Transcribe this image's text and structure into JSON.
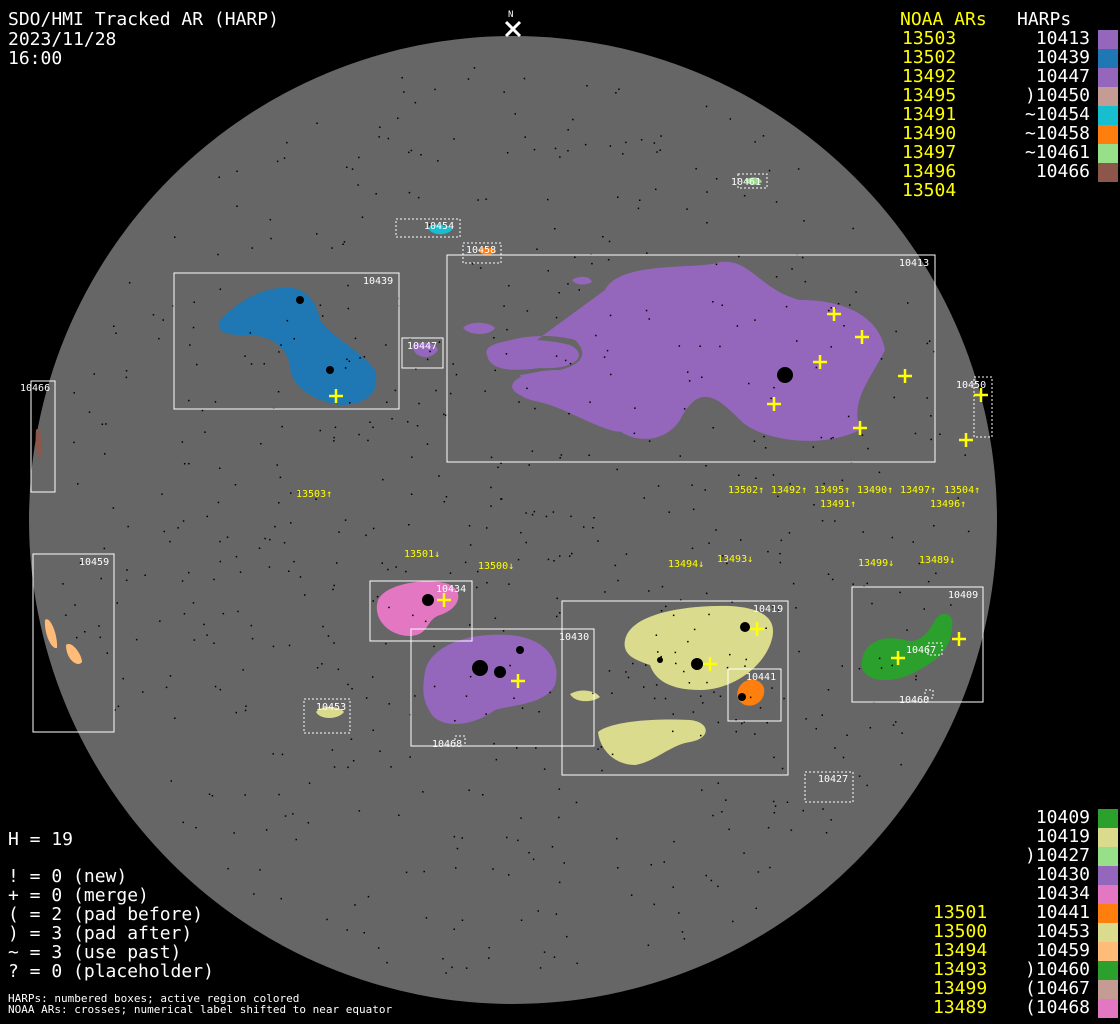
{
  "header": {
    "title": "SDO/HMI Tracked AR (HARP)",
    "date": "2023/11/28",
    "time": "16:00"
  },
  "north_label": "N",
  "legend_top": {
    "noaa_header": "NOAA ARs",
    "harp_header": "HARPs",
    "noaa": [
      "13503",
      "13502",
      "13492",
      "13495",
      "13491",
      "13490",
      "13497",
      "13496",
      "13504"
    ],
    "harps": [
      {
        "label": "10413",
        "color": "#9467bd"
      },
      {
        "label": "10439",
        "color": "#1f77b4"
      },
      {
        "label": "10447",
        "color": "#9467bd"
      },
      {
        "label": ")10450",
        "color": "#c49c94"
      },
      {
        "label": "~10454",
        "color": "#17becf"
      },
      {
        "label": "~10458",
        "color": "#ff7f0e"
      },
      {
        "label": "~10461",
        "color": "#98df8a"
      },
      {
        "label": "10466",
        "color": "#8c564b"
      }
    ]
  },
  "legend_bottom": {
    "noaa": [
      "",
      "",
      "",
      "",
      "",
      "13501",
      "13500",
      "13494",
      "13493",
      "13499",
      "13489"
    ],
    "harps": [
      {
        "label": "10409",
        "color": "#2ca02c"
      },
      {
        "label": "10419",
        "color": "#dbdb8d"
      },
      {
        "label": ")10427",
        "color": "#98df8a"
      },
      {
        "label": "10430",
        "color": "#9467bd"
      },
      {
        "label": "10434",
        "color": "#e377c2"
      },
      {
        "label": "10441",
        "color": "#ff7f0e"
      },
      {
        "label": "10453",
        "color": "#dbdb8d"
      },
      {
        "label": "10459",
        "color": "#ffbb78"
      },
      {
        "label": ")10460",
        "color": "#2ca02c"
      },
      {
        "label": "(10467",
        "color": "#c49c94"
      },
      {
        "label": "(10468",
        "color": "#e377c2"
      }
    ]
  },
  "stats": {
    "h_count": "H = 19",
    "lines": [
      "! = 0 (new)",
      "+ = 0 (merge)",
      "( = 2 (pad before)",
      ") = 3 (pad after)",
      "~ = 3 (use past)",
      "? = 0 (placeholder)"
    ],
    "footnote1": "HARPs: numbered boxes; active region colored",
    "footnote2": "NOAA ARs: crosses; numerical label shifted to near equator"
  },
  "disk": {
    "disk_color": "#666666",
    "harp_boxes": [
      "10413",
      "10439",
      "10447",
      "10454",
      "10458",
      "10461",
      "10450",
      "10466",
      "10459",
      "10434",
      "10430",
      "10419",
      "10441",
      "10409",
      "10453",
      "10427",
      "10467",
      "10460",
      "10468"
    ],
    "noaa_labels": [
      "13503↑",
      "13502↑",
      "13492↑",
      "13495↑",
      "13490↑",
      "13491↑",
      "13497↑",
      "13504↑",
      "13496↑",
      "13501↓",
      "13500↓",
      "13494↓",
      "13493↓",
      "13499↓",
      "13489↓"
    ]
  }
}
